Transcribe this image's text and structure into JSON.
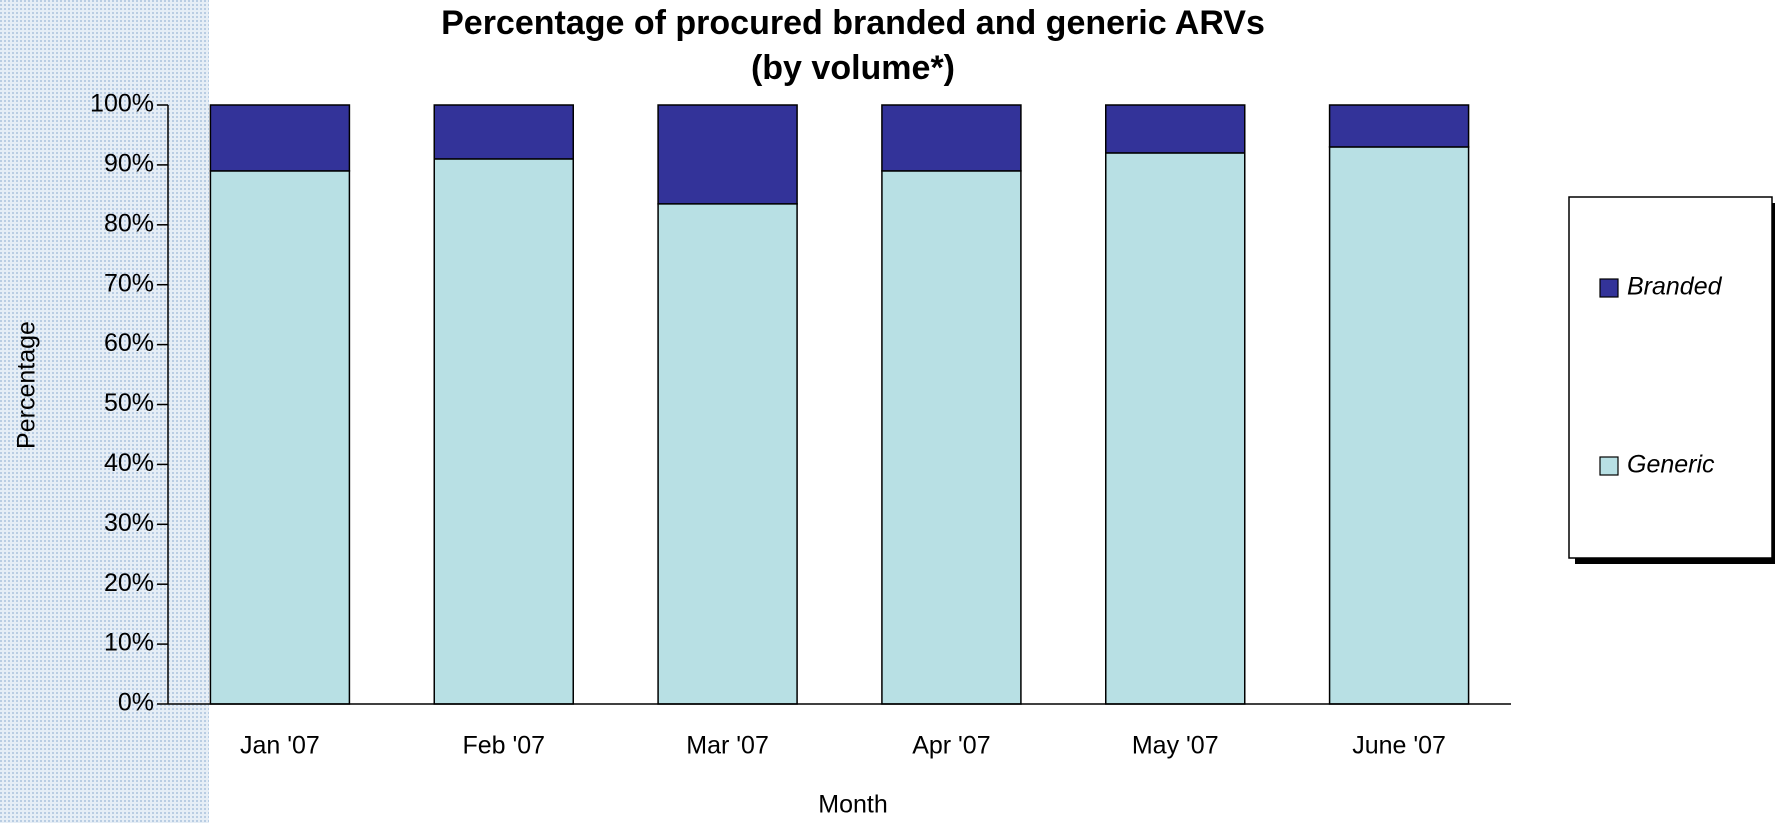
{
  "chart_data": {
    "type": "stacked_bar",
    "title": "Percentage of procured branded and generic ARVs",
    "subtitle": "(by volume*)",
    "x_label": "Month",
    "y_label": "Percentage",
    "categories": [
      "Jan '07",
      "Feb '07",
      "Mar '07",
      "Apr '07",
      "May '07",
      "June '07"
    ],
    "series": [
      {
        "name": "Generic",
        "color": "#b8e0e4",
        "values": [
          89,
          91,
          83.5,
          89,
          92,
          93
        ]
      },
      {
        "name": "Branded",
        "color": "#333399",
        "values": [
          11,
          9,
          16.5,
          11,
          8,
          7
        ]
      }
    ],
    "ylim": [
      0,
      100
    ],
    "yticks": [
      {
        "value": 0,
        "label": "0%"
      },
      {
        "value": 10,
        "label": "10%"
      },
      {
        "value": 20,
        "label": "20%"
      },
      {
        "value": 30,
        "label": "30%"
      },
      {
        "value": 40,
        "label": "40%"
      },
      {
        "value": 50,
        "label": "50%"
      },
      {
        "value": 60,
        "label": "60%"
      },
      {
        "value": 70,
        "label": "70%"
      },
      {
        "value": 80,
        "label": "80%"
      },
      {
        "value": 90,
        "label": "90%"
      },
      {
        "value": 100,
        "label": "100%"
      }
    ],
    "grid": false,
    "legend": "right"
  }
}
